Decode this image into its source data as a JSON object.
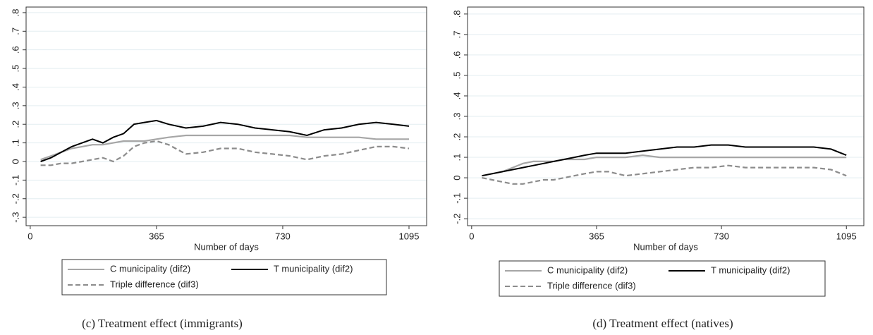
{
  "chart_data": [
    {
      "type": "line",
      "caption": "(c) Treatment effect (immigrants)",
      "xlabel": "Number of days",
      "x": [
        30,
        60,
        90,
        120,
        150,
        180,
        210,
        240,
        270,
        300,
        330,
        365,
        400,
        450,
        500,
        550,
        600,
        650,
        700,
        750,
        800,
        850,
        900,
        950,
        1000,
        1050,
        1095
      ],
      "series": [
        {
          "name": "C municipality (dif2)",
          "color": "#a6a6a6",
          "dash": false,
          "values": [
            0.01,
            0.03,
            0.05,
            0.07,
            0.08,
            0.09,
            0.09,
            0.1,
            0.11,
            0.11,
            0.11,
            0.12,
            0.13,
            0.14,
            0.14,
            0.14,
            0.14,
            0.14,
            0.14,
            0.14,
            0.13,
            0.13,
            0.13,
            0.13,
            0.12,
            0.12,
            0.12
          ]
        },
        {
          "name": "T municipality (dif2)",
          "color": "#000000",
          "dash": false,
          "values": [
            0,
            0.02,
            0.05,
            0.08,
            0.1,
            0.12,
            0.1,
            0.13,
            0.15,
            0.2,
            0.21,
            0.22,
            0.2,
            0.18,
            0.19,
            0.21,
            0.2,
            0.18,
            0.17,
            0.16,
            0.14,
            0.17,
            0.18,
            0.2,
            0.21,
            0.2,
            0.19
          ]
        },
        {
          "name": "Triple difference (dif3)",
          "color": "#8c8c8c",
          "dash": true,
          "values": [
            -0.02,
            -0.02,
            -0.01,
            -0.01,
            0,
            0.01,
            0.02,
            0,
            0.03,
            0.08,
            0.1,
            0.11,
            0.09,
            0.04,
            0.05,
            0.07,
            0.07,
            0.05,
            0.04,
            0.03,
            0.01,
            0.03,
            0.04,
            0.06,
            0.08,
            0.08,
            0.07
          ]
        }
      ],
      "xlim": [
        -12,
        1146
      ],
      "xticks": [
        0,
        365,
        730,
        1095
      ],
      "ylim": [
        -0.345,
        0.83
      ],
      "yticks": [
        {
          "value": -0.3,
          "label": "-.3"
        },
        {
          "value": -0.2,
          "label": "-.2"
        },
        {
          "value": -0.1,
          "label": "-.1"
        },
        0,
        {
          "value": 0.1,
          "label": ".1"
        },
        {
          "value": 0.2,
          "label": ".2"
        },
        {
          "value": 0.3,
          "label": ".3"
        },
        {
          "value": 0.4,
          "label": ".4"
        },
        {
          "value": 0.5,
          "label": ".5"
        },
        {
          "value": 0.6,
          "label": ".6"
        },
        {
          "value": 0.7,
          "label": ".7"
        },
        {
          "value": 0.8,
          "label": ".8"
        }
      ],
      "grid": true
    },
    {
      "type": "line",
      "caption": "(d) Treatment effect (natives)",
      "xlabel": "Number of days",
      "x": [
        30,
        60,
        90,
        120,
        150,
        180,
        210,
        240,
        270,
        300,
        330,
        365,
        400,
        450,
        500,
        550,
        600,
        650,
        700,
        750,
        800,
        850,
        900,
        950,
        1000,
        1050,
        1095
      ],
      "series": [
        {
          "name": "C municipality (dif2)",
          "color": "#a6a6a6",
          "dash": false,
          "values": [
            0.01,
            0.02,
            0.03,
            0.05,
            0.07,
            0.08,
            0.08,
            0.08,
            0.09,
            0.09,
            0.09,
            0.1,
            0.1,
            0.1,
            0.11,
            0.1,
            0.1,
            0.1,
            0.1,
            0.1,
            0.1,
            0.1,
            0.1,
            0.1,
            0.1,
            0.1,
            0.1
          ]
        },
        {
          "name": "T municipality (dif2)",
          "color": "#000000",
          "dash": false,
          "values": [
            0.01,
            0.02,
            0.03,
            0.04,
            0.05,
            0.06,
            0.07,
            0.08,
            0.09,
            0.1,
            0.11,
            0.12,
            0.12,
            0.12,
            0.13,
            0.14,
            0.15,
            0.15,
            0.16,
            0.16,
            0.15,
            0.15,
            0.15,
            0.15,
            0.15,
            0.14,
            0.11
          ]
        },
        {
          "name": "Triple difference (dif3)",
          "color": "#8c8c8c",
          "dash": true,
          "values": [
            0,
            -0.01,
            -0.02,
            -0.03,
            -0.03,
            -0.02,
            -0.01,
            -0.01,
            0,
            0.01,
            0.02,
            0.03,
            0.03,
            0.01,
            0.02,
            0.03,
            0.04,
            0.05,
            0.05,
            0.06,
            0.05,
            0.05,
            0.05,
            0.05,
            0.05,
            0.04,
            0.01
          ]
        }
      ],
      "xlim": [
        -12,
        1146
      ],
      "xticks": [
        0,
        365,
        730,
        1095
      ],
      "ylim": [
        -0.234,
        0.834
      ],
      "yticks": [
        {
          "value": -0.2,
          "label": "-.2"
        },
        {
          "value": -0.1,
          "label": "-.1"
        },
        0,
        {
          "value": 0.1,
          "label": ".1"
        },
        {
          "value": 0.2,
          "label": ".2"
        },
        {
          "value": 0.3,
          "label": ".3"
        },
        {
          "value": 0.4,
          "label": ".4"
        },
        {
          "value": 0.5,
          "label": ".5"
        },
        {
          "value": 0.6,
          "label": ".6"
        },
        {
          "value": 0.7,
          "label": ".7"
        },
        {
          "value": 0.8,
          "label": ".8"
        }
      ],
      "grid": true
    }
  ]
}
